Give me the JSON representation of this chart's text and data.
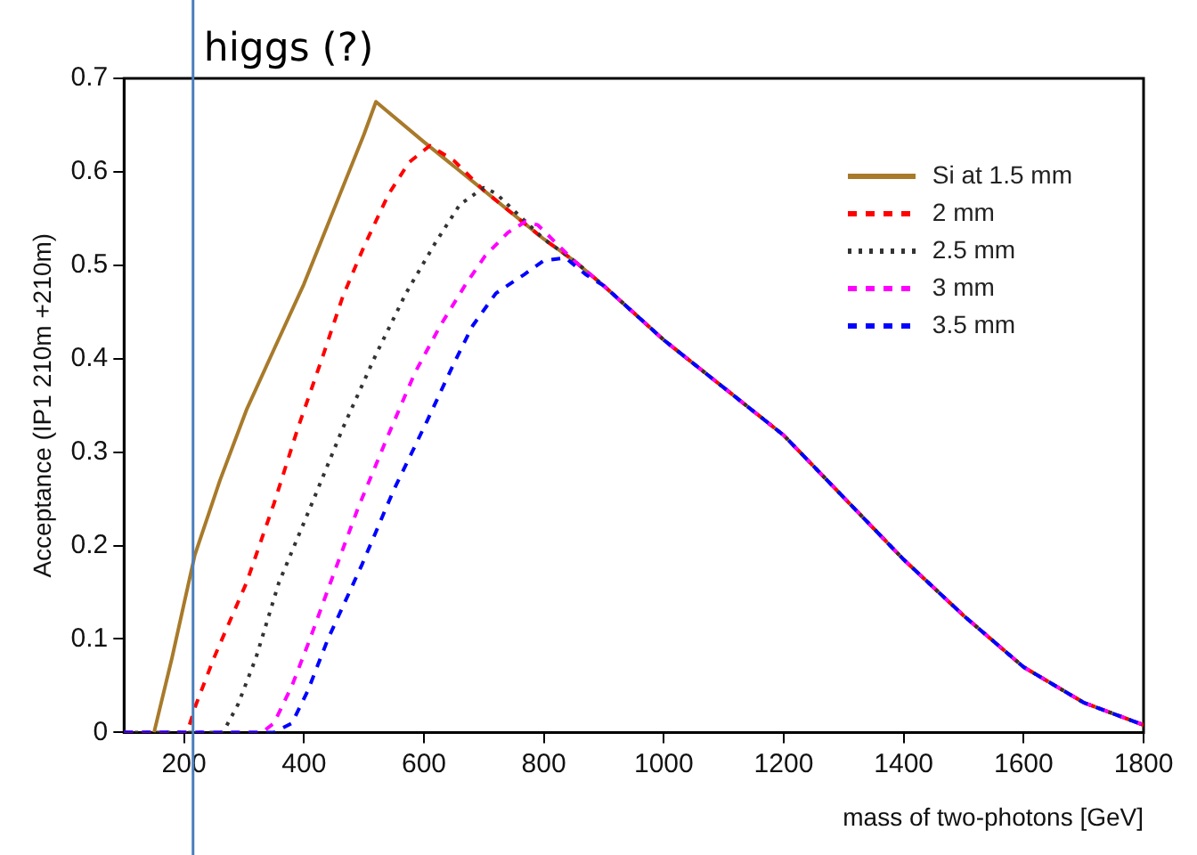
{
  "chart_data": {
    "type": "line",
    "xlabel": "mass of two-photons [GeV]",
    "ylabel": "Acceptance (IP1 210m +210m)",
    "xlim": [
      100,
      1800
    ],
    "xticks": [
      200,
      400,
      600,
      800,
      1000,
      1200,
      1400,
      1600,
      1800
    ],
    "ylim": [
      0,
      0.7
    ],
    "yticks": [
      0,
      0.1,
      0.2,
      0.3,
      0.4,
      0.5,
      0.6,
      0.7
    ],
    "grid": false,
    "legend": "top right",
    "marker": "none",
    "ref_lines": [
      {
        "axis": "x",
        "value": 215,
        "label": "higgs (?)",
        "color": "#4a7ebb"
      }
    ],
    "series": [
      {
        "name": "Si at 1.5 mm",
        "color": "#a87a2a",
        "line_style": "solid",
        "x": [
          150,
          180,
          218,
          260,
          304,
          350,
          400,
          450,
          500,
          520,
          600,
          700,
          800,
          850,
          900,
          1000,
          1200,
          1400,
          1500,
          1600,
          1700,
          1800
        ],
        "values": [
          0,
          0.08,
          0.19,
          0.27,
          0.345,
          0.41,
          0.48,
          0.56,
          0.64,
          0.675,
          0.632,
          0.58,
          0.528,
          0.505,
          0.478,
          0.42,
          0.318,
          0.185,
          0.125,
          0.07,
          0.032,
          0.008
        ]
      },
      {
        "name": "2 mm",
        "color": "#ff0000",
        "line_style": "dashed",
        "x": [
          100,
          205,
          220,
          250,
          304,
          350,
          390,
          430,
          465,
          500,
          541,
          575,
          610,
          650,
          700,
          800,
          850,
          900,
          1000,
          1200,
          1400,
          1500,
          1600,
          1700,
          1800
        ],
        "values": [
          0,
          0,
          0.03,
          0.08,
          0.16,
          0.245,
          0.326,
          0.4,
          0.467,
          0.52,
          0.576,
          0.61,
          0.628,
          0.612,
          0.58,
          0.528,
          0.505,
          0.478,
          0.42,
          0.318,
          0.185,
          0.125,
          0.07,
          0.032,
          0.008
        ]
      },
      {
        "name": "2.5 mm",
        "color": "#333333",
        "line_style": "dotted",
        "x": [
          100,
          265,
          290,
          320,
          358,
          410,
          465,
          519,
          570,
          620,
          660,
          700,
          720,
          800,
          850,
          900,
          1000,
          1200,
          1400,
          1500,
          1600,
          1700,
          1800
        ],
        "values": [
          0,
          0,
          0.03,
          0.08,
          0.16,
          0.24,
          0.326,
          0.403,
          0.47,
          0.525,
          0.565,
          0.583,
          0.577,
          0.528,
          0.505,
          0.478,
          0.42,
          0.318,
          0.185,
          0.125,
          0.07,
          0.032,
          0.008
        ]
      },
      {
        "name": "3 mm",
        "color": "#ff00ff",
        "line_style": "dashed",
        "x": [
          100,
          330,
          350,
          380,
          410,
          444,
          490,
          541,
          585,
          627,
          670,
          702,
          740,
          770,
          790,
          850,
          900,
          1000,
          1200,
          1400,
          1500,
          1600,
          1700,
          1800
        ],
        "values": [
          0,
          0,
          0.01,
          0.05,
          0.1,
          0.16,
          0.24,
          0.319,
          0.385,
          0.435,
          0.48,
          0.51,
          0.535,
          0.547,
          0.543,
          0.505,
          0.478,
          0.42,
          0.318,
          0.185,
          0.125,
          0.07,
          0.032,
          0.008
        ]
      },
      {
        "name": "3.5 mm",
        "color": "#0000ff",
        "line_style": "dashed",
        "x": [
          100,
          350,
          380,
          406,
          440,
          497,
          550,
          605,
          650,
          681,
          720,
          767,
          800,
          836,
          870,
          900,
          1000,
          1200,
          1400,
          1500,
          1600,
          1700,
          1800
        ],
        "values": [
          0,
          0,
          0.01,
          0.044,
          0.1,
          0.18,
          0.26,
          0.333,
          0.395,
          0.435,
          0.47,
          0.49,
          0.505,
          0.508,
          0.49,
          0.478,
          0.42,
          0.318,
          0.185,
          0.125,
          0.07,
          0.032,
          0.008
        ]
      }
    ]
  }
}
